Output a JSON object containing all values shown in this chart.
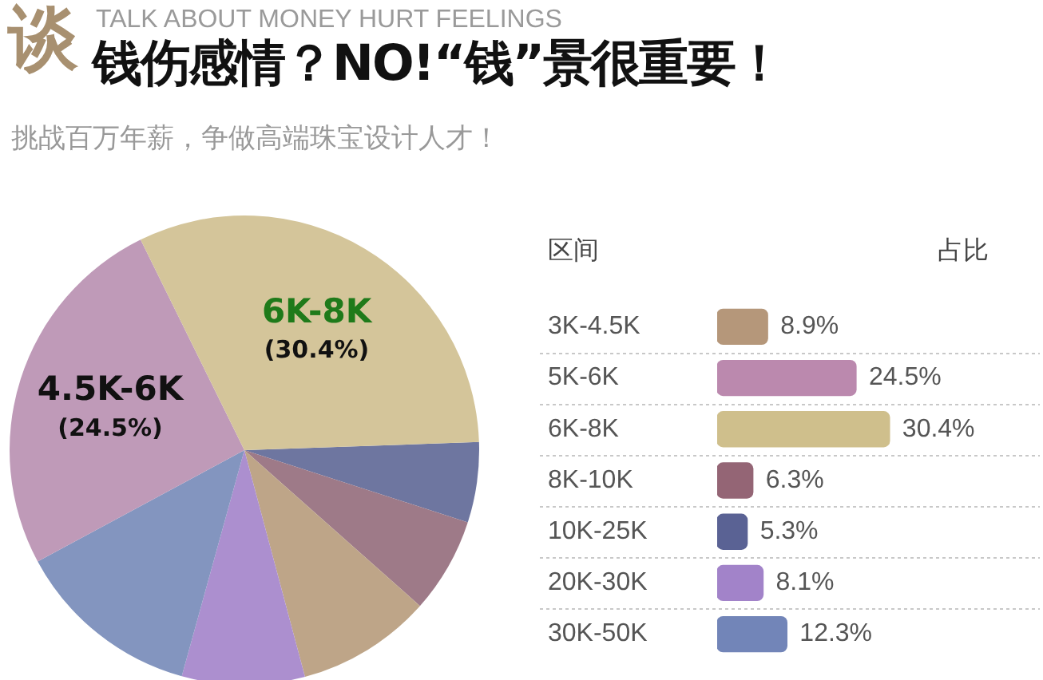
{
  "chart_data": [
    {
      "type": "pie",
      "title": "钱伤感情？NO!“钱”景很重要！",
      "subtitle": "挑战百万年薪，争做高端珠宝设计人才！",
      "annotations": [
        "谈",
        "TALK ABOUT MONEY HURT FEELINGS"
      ],
      "categories": [
        null,
        null,
        null,
        null,
        null,
        "4.5K-6K",
        "6K-8K"
      ],
      "values": [
        5.3,
        6.3,
        8.9,
        8.1,
        12.3,
        24.5,
        30.4
      ],
      "colors": [
        "#6e76a0",
        "#9e7a88",
        "#bea588",
        "#ac8fcf",
        "#8395bf",
        "#bf9ab8",
        "#d4c59a"
      ],
      "value_labels": [
        null,
        null,
        null,
        null,
        null,
        "(24.5%)",
        "(30.4%)"
      ]
    },
    {
      "type": "bar",
      "orientation": "horizontal",
      "ylabel": "区间",
      "xlabel": "占比",
      "categories": [
        "3K-4.5K",
        "5K-6K",
        "6K-8K",
        "8K-10K",
        "10K-25K",
        "20K-30K",
        "30K-50K"
      ],
      "values": [
        8.9,
        24.5,
        30.4,
        6.3,
        5.3,
        8.1,
        12.3
      ],
      "colors": [
        "#b5977a",
        "#bb89ae",
        "#cfbf8c",
        "#946575",
        "#5a6294",
        "#a283c9",
        "#7285b8"
      ],
      "value_labels": [
        "8.9%",
        "24.5%",
        "30.4%",
        "6.3%",
        "5.3%",
        "8.1%",
        "12.3%"
      ],
      "grid": "y"
    }
  ]
}
